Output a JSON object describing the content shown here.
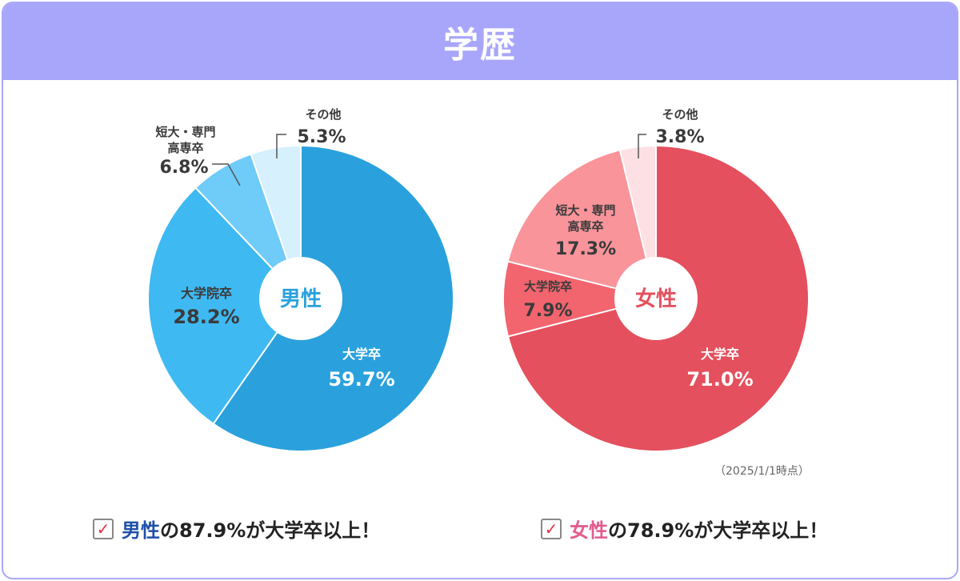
{
  "header": {
    "title": "学歴"
  },
  "note": "（2025/1/1時点）",
  "colors": {
    "header_bg": "#a8a6fb",
    "male": [
      "#2aa1dd",
      "#3fb9f2",
      "#6fcbf7",
      "#d6f0fd"
    ],
    "female": [
      "#e4505d",
      "#f2646e",
      "#f9949a",
      "#fde0e3"
    ]
  },
  "chart_data": [
    {
      "type": "pie",
      "center_label": "男性",
      "slices": [
        {
          "label": "大学卒",
          "value": 59.7,
          "value_text": "59.7%"
        },
        {
          "label": "大学院卒",
          "value": 28.2,
          "value_text": "28.2%"
        },
        {
          "label": "短大・専門 高専卒",
          "value": 6.8,
          "value_text": "6.8%"
        },
        {
          "label": "その他",
          "value": 5.3,
          "value_text": "5.3%"
        }
      ]
    },
    {
      "type": "pie",
      "center_label": "女性",
      "slices": [
        {
          "label": "大学卒",
          "value": 71.0,
          "value_text": "71.0%"
        },
        {
          "label": "大学院卒",
          "value": 7.9,
          "value_text": "7.9%"
        },
        {
          "label": "短大・専門 高専卒",
          "value": 17.3,
          "value_text": "17.3%"
        },
        {
          "label": "その他",
          "value": 3.8,
          "value_text": "3.8%"
        }
      ]
    }
  ],
  "summaries": [
    {
      "check": "✓",
      "subject": "男性",
      "rest": "の87.9%が大学卒以上！"
    },
    {
      "check": "✓",
      "subject": "女性",
      "rest": "の78.9%が大学卒以上！"
    }
  ]
}
